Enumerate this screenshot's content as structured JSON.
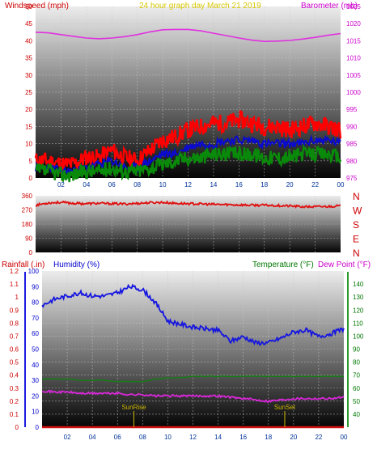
{
  "colors": {
    "wind": "#ff1010",
    "gust": "#ff0000",
    "avg": "#0a0ad0",
    "green": "#0a8a0a",
    "baro": "#e030e0",
    "dir": "#e01010",
    "humidity": "#1515e0",
    "temp": "#137f13",
    "dew": "#d828d8",
    "rain": "#d01010",
    "title": "#d8c800",
    "label_rain": "#cc0000",
    "label_hum": "#0000cc",
    "label_temp": "#007700",
    "label_dew": "#cc00cc",
    "sun": "#c8b400"
  },
  "top_panel": {
    "left_label": "Windspeed (mph)",
    "center_title": "24 hour graph day   March 21 2019",
    "right_label": "Barometer (mb)"
  },
  "bottom_panel": {
    "label_rain": "Rainfall (.in)",
    "label_humidity": "Humidity (%)",
    "label_temp": "Temperature (°F)",
    "label_dew": "Dew Point (°F)",
    "sunrise": "SunRise",
    "sunset": "SunSet"
  },
  "chart_data": [
    {
      "type": "line",
      "title": "24 hour graph day   March 21 2019",
      "x_ticks": [
        "02",
        "04",
        "06",
        "08",
        "10",
        "12",
        "14",
        "16",
        "18",
        "20",
        "22",
        "00"
      ],
      "y_left": {
        "label": "Windspeed (mph)",
        "ticks": [
          "0",
          "5",
          "10",
          "15",
          "20",
          "25",
          "30",
          "35",
          "40",
          "45",
          "50"
        ],
        "range": [
          0,
          50
        ]
      },
      "y_right": {
        "label": "Barometer (mb)",
        "ticks": [
          "975",
          "980",
          "985",
          "990",
          "995",
          "1000",
          "1005",
          "1010",
          "1015",
          "1020",
          "1025"
        ],
        "range": [
          975,
          1025
        ]
      },
      "x_hours": [
        0,
        1,
        2,
        3,
        4,
        5,
        6,
        7,
        8,
        9,
        10,
        11,
        12,
        13,
        14,
        15,
        16,
        17,
        18,
        19,
        20,
        21,
        22,
        23,
        24
      ],
      "series": [
        {
          "key": "barometer",
          "axis": "right",
          "values": [
            1017.5,
            1017.3,
            1016.8,
            1016.3,
            1015.8,
            1015.6,
            1015.8,
            1016.2,
            1016.8,
            1017.6,
            1018.2,
            1018.3,
            1018.3,
            1017.9,
            1017.2,
            1016.5,
            1015.8,
            1015.2,
            1014.8,
            1014.9,
            1015.1,
            1015.5,
            1016.0,
            1016.6,
            1017.1
          ]
        },
        {
          "key": "gust",
          "axis": "left",
          "values": [
            5,
            5,
            4,
            4,
            6,
            6,
            8,
            6,
            5,
            8,
            11,
            12,
            14,
            15,
            16,
            16,
            17,
            16,
            15,
            15,
            14,
            15,
            16,
            15,
            14
          ]
        },
        {
          "key": "wind_avg",
          "axis": "left",
          "values": [
            3,
            3,
            2,
            2,
            3,
            4,
            5,
            3,
            3,
            5,
            7,
            7,
            9,
            10,
            10,
            11,
            11,
            11,
            10,
            10,
            10,
            10,
            11,
            11,
            10
          ]
        },
        {
          "key": "wind_low",
          "axis": "left",
          "values": [
            2,
            2,
            1,
            1,
            2,
            2,
            3,
            2,
            2,
            3,
            4,
            5,
            6,
            6,
            7,
            7,
            7,
            7,
            6,
            6,
            6,
            7,
            7,
            7,
            6
          ]
        }
      ]
    },
    {
      "type": "line",
      "title": "",
      "x_ticks": [],
      "y_left": {
        "label": "",
        "ticks": [
          "0",
          "90",
          "180",
          "270",
          "360"
        ],
        "range": [
          0,
          360
        ]
      },
      "y_right": {
        "label": "",
        "ticks": [
          "N",
          "W",
          "S",
          "E",
          "N"
        ]
      },
      "x_hours": [
        0,
        1,
        2,
        3,
        4,
        5,
        6,
        7,
        8,
        9,
        10,
        11,
        12,
        13,
        14,
        15,
        16,
        17,
        18,
        19,
        20,
        21,
        22,
        23,
        24
      ],
      "series": [
        {
          "key": "wind_direction",
          "axis": "left",
          "values": [
            300,
            315,
            318,
            312,
            310,
            312,
            310,
            308,
            312,
            316,
            318,
            312,
            310,
            308,
            305,
            304,
            302,
            300,
            300,
            298,
            295,
            290,
            290,
            292,
            296
          ]
        }
      ]
    },
    {
      "type": "line",
      "title": "",
      "x_ticks": [
        "02",
        "04",
        "06",
        "08",
        "10",
        "12",
        "14",
        "16",
        "18",
        "20",
        "22",
        "00"
      ],
      "y_left_outer": {
        "label": "Rainfall (.in)",
        "ticks": [
          "0",
          "0.1",
          "0.2",
          "0.3",
          "0.4",
          "0.5",
          "0.6",
          "0.7",
          "0.8",
          "0.9",
          "1",
          "1.1",
          "1.2"
        ],
        "range": [
          0,
          1.2
        ]
      },
      "y_left_inner": {
        "label": "Humidity (%)",
        "ticks": [
          "0",
          "10",
          "20",
          "30",
          "40",
          "50",
          "60",
          "70",
          "80",
          "90",
          "100"
        ],
        "range": [
          0,
          100
        ]
      },
      "y_right": {
        "label": "Temperature (°F)",
        "ticks": [
          "40",
          "50",
          "60",
          "70",
          "80",
          "90",
          "100",
          "110",
          "120",
          "130",
          "140"
        ],
        "range": [
          30,
          150
        ]
      },
      "x_hours": [
        0,
        1,
        2,
        3,
        4,
        5,
        6,
        7,
        8,
        9,
        10,
        11,
        12,
        13,
        14,
        15,
        16,
        17,
        18,
        19,
        20,
        21,
        22,
        23,
        24
      ],
      "series": [
        {
          "key": "humidity",
          "axis": "inner",
          "values": [
            78,
            82,
            84,
            86,
            84,
            84,
            86,
            90,
            88,
            80,
            68,
            66,
            64,
            63,
            62,
            55,
            58,
            54,
            54,
            57,
            61,
            62,
            58,
            60,
            63
          ]
        },
        {
          "key": "temperature",
          "axis": "right",
          "values": [
            67,
            67,
            67,
            66,
            66,
            66,
            65,
            65,
            65,
            67,
            68,
            68,
            69,
            69,
            69,
            69,
            69,
            69,
            69,
            69,
            69,
            69,
            69,
            69,
            69
          ]
        },
        {
          "key": "dew_point",
          "axis": "right",
          "values": [
            58,
            57,
            57,
            56,
            56,
            56,
            56,
            55,
            55,
            54,
            54,
            54,
            54,
            54,
            54,
            53,
            52,
            51,
            50,
            51,
            52,
            52,
            52,
            52,
            53
          ]
        },
        {
          "key": "rainfall",
          "axis": "outer",
          "values": [
            0,
            0,
            0,
            0,
            0,
            0,
            0,
            0,
            0,
            0,
            0,
            0,
            0,
            0,
            0,
            0,
            0,
            0,
            0,
            0,
            0,
            0,
            0,
            0,
            0
          ]
        }
      ],
      "annotations": [
        {
          "text": "SunRise",
          "hour": 7.3
        },
        {
          "text": "SunSet",
          "hour": 19.3
        }
      ]
    }
  ]
}
